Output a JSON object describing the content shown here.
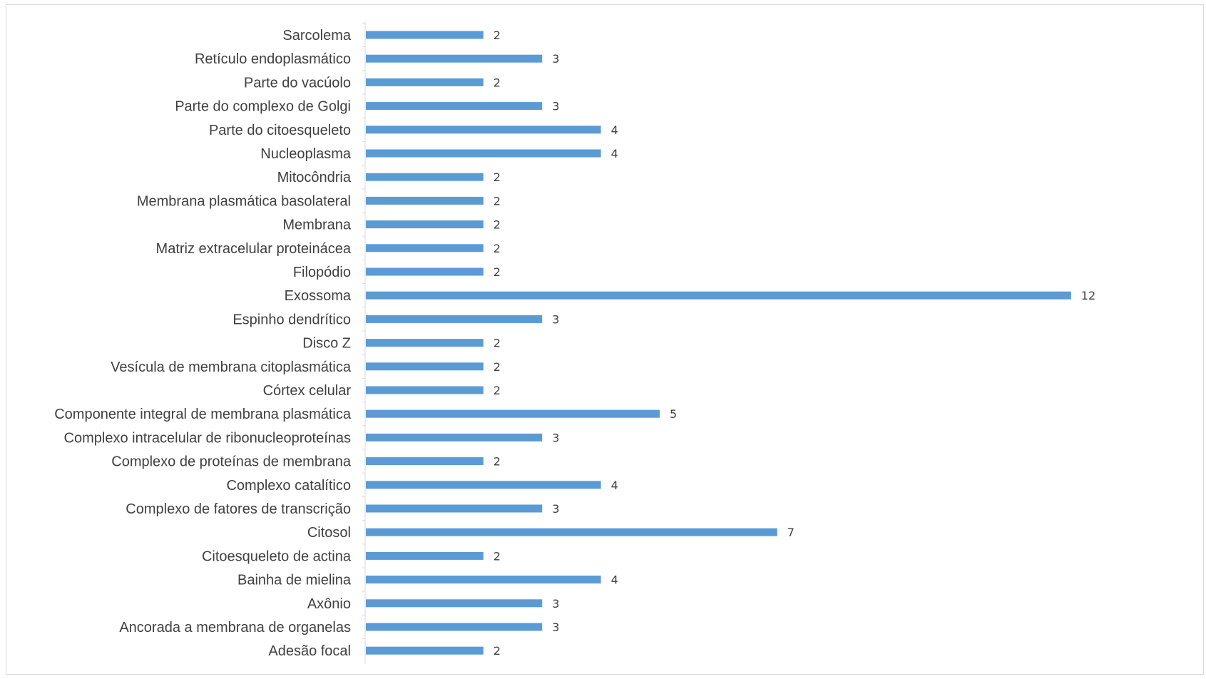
{
  "chart_data": {
    "type": "bar",
    "orientation": "horizontal",
    "title": "",
    "xlabel": "",
    "ylabel": "",
    "xlim": [
      0,
      13
    ],
    "grid": false,
    "legend": "none",
    "bar_color": "#5b9bd5",
    "categories": [
      "Sarcolema",
      "Retículo endoplasmático",
      "Parte do vacúolo",
      "Parte do complexo de Golgi",
      "Parte do citoesqueleto",
      "Nucleoplasma",
      "Mitocôndria",
      "Membrana plasmática basolateral",
      "Membrana",
      "Matriz extracelular proteinácea",
      "Filopódio",
      "Exossoma",
      "Espinho dendrítico",
      "Disco Z",
      "Vesícula de membrana citoplasmática",
      "Córtex celular",
      "Componente integral de membrana plasmática",
      "Complexo intracelular de ribonucleoproteínas",
      "Complexo de proteínas de membrana",
      "Complexo catalítico",
      "Complexo de fatores de transcrição ",
      "Citosol",
      "Citoesqueleto de actina",
      "Bainha de mielina",
      "Axônio",
      "Ancorada a membrana de organelas",
      "Adesão focal"
    ],
    "values": [
      2,
      3,
      2,
      3,
      4,
      4,
      2,
      2,
      2,
      2,
      2,
      12,
      3,
      2,
      2,
      2,
      5,
      3,
      2,
      4,
      3,
      7,
      2,
      4,
      3,
      3,
      2
    ]
  }
}
